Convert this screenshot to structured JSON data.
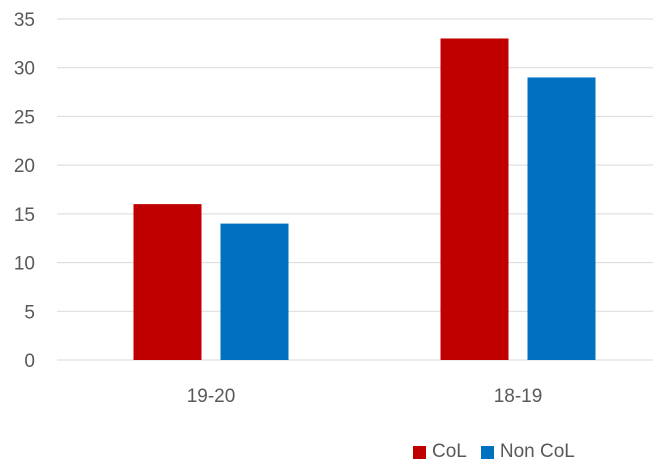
{
  "chart_data": {
    "type": "bar",
    "categories": [
      "19-20",
      "18-19"
    ],
    "series": [
      {
        "name": "CoL",
        "color": "#C00000",
        "values": [
          16,
          33
        ]
      },
      {
        "name": "Non CoL",
        "color": "#0070C0",
        "values": [
          14,
          29
        ]
      }
    ],
    "ylim": [
      0,
      35
    ],
    "yticks": [
      0,
      5,
      10,
      15,
      20,
      25,
      30,
      35
    ],
    "grid": true,
    "legend_position": "bottom-right"
  }
}
